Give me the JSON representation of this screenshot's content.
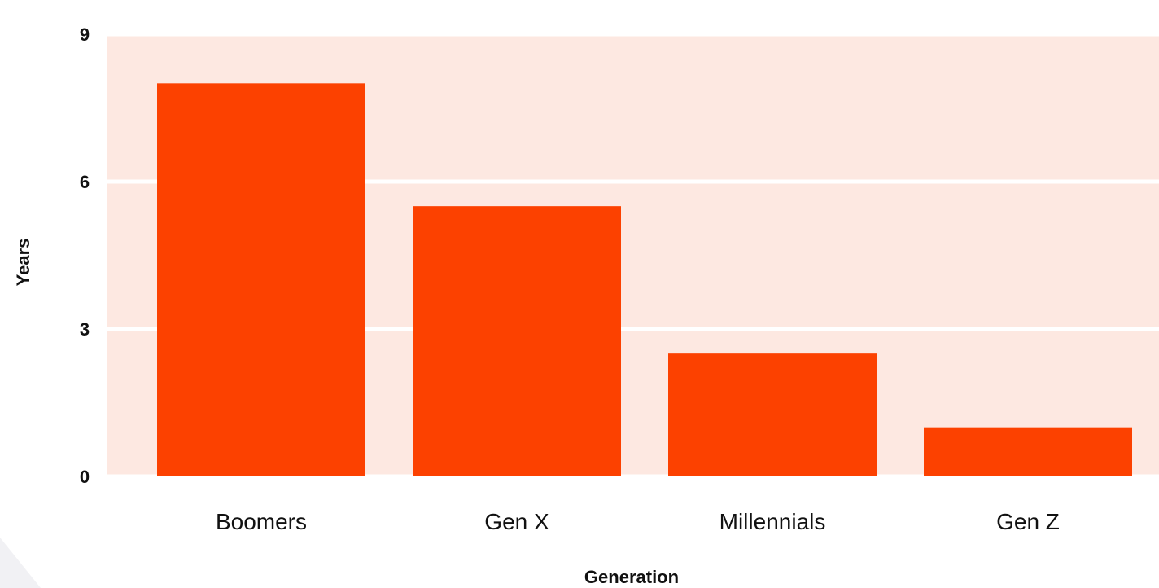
{
  "chart_data": {
    "type": "bar",
    "categories": [
      "Boomers",
      "Gen X",
      "Millennials",
      "Gen Z"
    ],
    "values": [
      8.0,
      5.5,
      2.5,
      1.0
    ],
    "title": "",
    "xlabel": "Generation",
    "ylabel": "Years",
    "ylim": [
      0,
      9
    ],
    "yticks": [
      0,
      3,
      6,
      9
    ],
    "grid": true,
    "bar_color": "#FC4100",
    "plot_background": "#FDE8E1",
    "gridline_color": "#FFFFFF"
  }
}
